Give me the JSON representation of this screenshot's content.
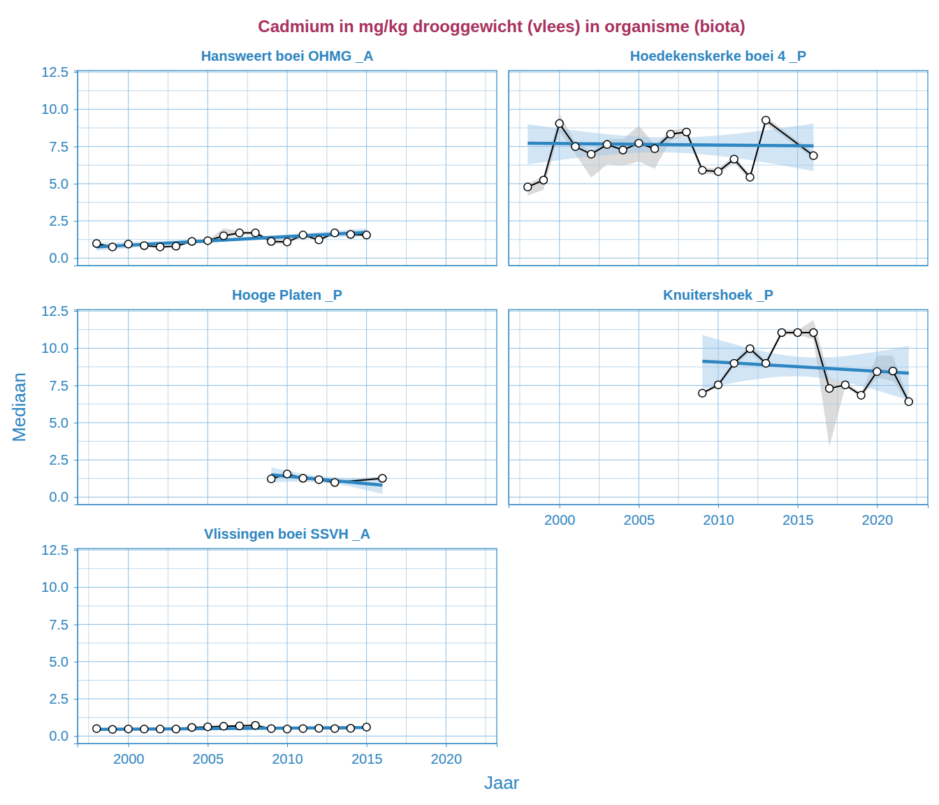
{
  "chart_data": {
    "type": "line",
    "title": "Cadmium in mg/kg drooggewicht (vlees) in organisme (biota)",
    "x_label": "Jaar",
    "y_label": "Mediaan",
    "xlim": [
      1996.8,
      2023.2
    ],
    "xticks": [
      2000,
      2005,
      2010,
      2015,
      2020
    ],
    "ylim": [
      -0.5,
      12.6
    ],
    "yticks": [
      {
        "value": 0,
        "label": "0.0"
      },
      2.5,
      {
        "value": 5,
        "label": "5.0"
      },
      7.5,
      {
        "value": 10,
        "label": "10.0"
      },
      12.5
    ],
    "grid": true,
    "marker": "circle",
    "panels": [
      {
        "title": "Hansweert boei OHMG _A",
        "x": [
          1998,
          1999,
          2000,
          2001,
          2002,
          2003,
          2004,
          2005,
          2006,
          2007,
          2008,
          2009,
          2010,
          2011,
          2012,
          2013,
          2014,
          2015
        ],
        "values": [
          0.98,
          0.75,
          0.94,
          0.84,
          0.75,
          0.8,
          1.12,
          1.17,
          1.5,
          1.69,
          1.69,
          1.12,
          1.08,
          1.55,
          1.22,
          1.69,
          1.59,
          1.55
        ],
        "lower": [
          0.95,
          0.72,
          0.9,
          0.8,
          0.7,
          0.75,
          1.08,
          1.12,
          1.35,
          1.55,
          1.6,
          0.95,
          0.98,
          1.45,
          1.15,
          1.6,
          1.5,
          1.48
        ],
        "upper": [
          1.0,
          0.78,
          0.98,
          0.88,
          0.8,
          0.85,
          1.16,
          1.22,
          2.0,
          1.8,
          1.78,
          1.3,
          1.18,
          1.62,
          1.3,
          1.78,
          1.68,
          1.62
        ],
        "trend": {
          "x": [
            1998,
            2015
          ],
          "values": [
            0.75,
            1.73
          ]
        },
        "trend_band": {
          "x": [
            1998,
            2006.5,
            2015
          ],
          "lower": [
            0.5,
            1.15,
            1.45
          ],
          "upper": [
            1.0,
            1.35,
            2.0
          ]
        }
      },
      {
        "title": "Hoedekenskerke boei 4 _P",
        "x": [
          1998,
          1999,
          2000,
          2001,
          2002,
          2003,
          2004,
          2005,
          2006,
          2007,
          2008,
          2009,
          2010,
          2011,
          2012,
          2013,
          2016
        ],
        "values": [
          4.78,
          5.24,
          9.04,
          7.49,
          6.98,
          7.63,
          7.26,
          7.72,
          7.35,
          8.33,
          8.47,
          5.9,
          5.81,
          6.65,
          5.43,
          9.27,
          6.88
        ],
        "lower": [
          4.2,
          4.6,
          8.5,
          7.0,
          5.4,
          6.3,
          6.2,
          6.5,
          6.0,
          7.9,
          8.2,
          5.7,
          5.6,
          6.4,
          5.2,
          9.0,
          6.7
        ],
        "upper": [
          5.0,
          5.5,
          9.7,
          7.8,
          7.2,
          8.0,
          8.0,
          8.9,
          7.6,
          8.6,
          8.7,
          6.1,
          6.0,
          6.9,
          5.6,
          9.5,
          7.1
        ],
        "trend": {
          "x": [
            1998,
            2016
          ],
          "values": [
            7.72,
            7.54
          ]
        },
        "trend_band": {
          "x": [
            1998,
            2007,
            2016
          ],
          "lower": [
            6.3,
            7.1,
            5.85
          ],
          "upper": [
            9.0,
            8.1,
            9.04
          ]
        }
      },
      {
        "title": "Hooge Platen _P",
        "x": [
          2009,
          2010,
          2011,
          2012,
          2013,
          2016
        ],
        "values": [
          1.22,
          1.55,
          1.26,
          1.17,
          0.98,
          1.26
        ],
        "lower": [
          1.1,
          1.45,
          1.15,
          1.05,
          0.88,
          1.15
        ],
        "upper": [
          1.35,
          1.65,
          1.38,
          1.28,
          1.08,
          1.38
        ],
        "trend": {
          "x": [
            2009,
            2016
          ],
          "values": [
            1.5,
            0.8
          ]
        },
        "trend_band": {
          "x": [
            2009,
            2012.5,
            2016
          ],
          "lower": [
            1.0,
            0.95,
            0.2
          ],
          "upper": [
            2.0,
            1.35,
            1.35
          ]
        }
      },
      {
        "title": "Knuitershoek _P",
        "x": [
          2009,
          2010,
          2011,
          2012,
          2013,
          2014,
          2015,
          2016,
          2017,
          2018,
          2019,
          2020,
          2021,
          2022
        ],
        "values": [
          6.98,
          7.54,
          8.99,
          9.97,
          8.99,
          11.05,
          11.05,
          11.05,
          7.3,
          7.54,
          6.84,
          8.43,
          8.47,
          6.41
        ],
        "lower": [
          6.9,
          7.4,
          8.8,
          9.7,
          8.8,
          10.9,
          10.9,
          10.6,
          3.4,
          7.4,
          6.7,
          8.0,
          7.8,
          6.3
        ],
        "upper": [
          7.1,
          7.7,
          9.2,
          10.2,
          9.2,
          11.2,
          11.2,
          11.9,
          8.0,
          7.7,
          7.0,
          9.5,
          9.5,
          6.5
        ],
        "trend": {
          "x": [
            2009,
            2022
          ],
          "values": [
            9.13,
            8.33
          ]
        },
        "trend_band": {
          "x": [
            2009,
            2015.5,
            2022
          ],
          "lower": [
            7.26,
            8.1,
            6.5
          ],
          "upper": [
            10.9,
            9.4,
            10.16
          ]
        }
      },
      {
        "title": "Vlissingen boei SSVH _A",
        "x": [
          1998,
          1999,
          2000,
          2001,
          2002,
          2003,
          2004,
          2005,
          2006,
          2007,
          2008,
          2009,
          2010,
          2011,
          2012,
          2013,
          2014,
          2015
        ],
        "values": [
          0.5,
          0.45,
          0.48,
          0.47,
          0.47,
          0.47,
          0.58,
          0.62,
          0.66,
          0.68,
          0.72,
          0.5,
          0.47,
          0.5,
          0.52,
          0.5,
          0.52,
          0.6
        ],
        "lower": [
          0.47,
          0.42,
          0.45,
          0.44,
          0.44,
          0.44,
          0.55,
          0.58,
          0.62,
          0.64,
          0.68,
          0.47,
          0.44,
          0.47,
          0.49,
          0.47,
          0.49,
          0.57
        ],
        "upper": [
          0.53,
          0.48,
          0.51,
          0.5,
          0.5,
          0.5,
          0.61,
          0.66,
          0.7,
          0.72,
          0.78,
          0.53,
          0.5,
          0.53,
          0.55,
          0.53,
          0.55,
          0.63
        ],
        "trend": {
          "x": [
            1998,
            2015
          ],
          "values": [
            0.45,
            0.57
          ]
        },
        "trend_band": {
          "x": [
            1998,
            2006.5,
            2015
          ],
          "lower": [
            0.35,
            0.48,
            0.47
          ],
          "upper": [
            0.55,
            0.56,
            0.67
          ]
        }
      }
    ]
  }
}
